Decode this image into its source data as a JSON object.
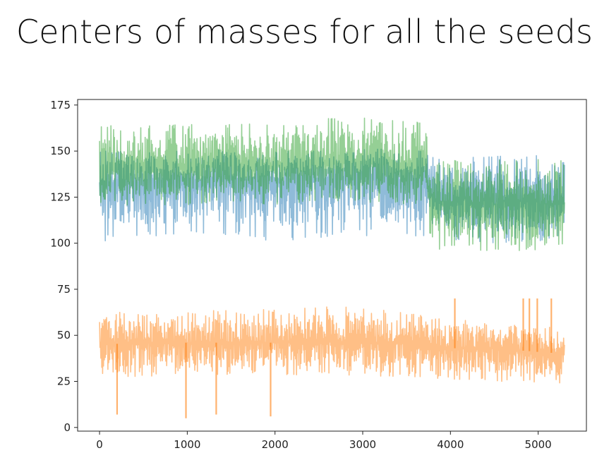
{
  "slide": {
    "title": "Centers of masses for all the seeds"
  },
  "chart_data": {
    "type": "line",
    "title": "",
    "xlabel": "",
    "ylabel": "",
    "xlim": [
      -250,
      5550
    ],
    "ylim": [
      -2,
      178
    ],
    "grid": false,
    "legend": "none",
    "x_ticks": [
      0,
      1000,
      2000,
      3000,
      4000,
      5000
    ],
    "y_ticks": [
      0,
      25,
      50,
      75,
      100,
      125,
      150,
      175
    ],
    "n_points": 5300,
    "series": [
      {
        "color": "#1f77b4",
        "alpha": 0.5,
        "x": [
          0,
          500,
          1000,
          1500,
          2000,
          2500,
          3000,
          3500,
          3720,
          3760,
          4000,
          4500,
          5000,
          5300
        ],
        "values": [
          132,
          133,
          134,
          134,
          133,
          134,
          135,
          134,
          134,
          126,
          125,
          124,
          123,
          124
        ],
        "spread": [
          [
            101,
            150
          ],
          [
            103,
            150
          ],
          [
            103,
            151
          ],
          [
            104,
            151
          ],
          [
            100,
            150
          ],
          [
            103,
            151
          ],
          [
            104,
            152
          ],
          [
            103,
            151
          ],
          [
            104,
            151
          ],
          [
            105,
            150
          ],
          [
            102,
            146
          ],
          [
            100,
            148
          ],
          [
            101,
            148
          ],
          [
            103,
            151
          ]
        ]
      },
      {
        "color": "#ff7f0e",
        "alpha": 0.5,
        "x": [
          0,
          500,
          1000,
          1500,
          2000,
          2500,
          3000,
          3500,
          3720,
          3760,
          4000,
          4500,
          5000,
          5300
        ],
        "values": [
          45,
          46,
          46,
          46,
          46,
          47,
          46,
          46,
          46,
          44,
          43,
          43,
          41,
          40
        ],
        "spread": [
          [
            26,
            62
          ],
          [
            28,
            63
          ],
          [
            27,
            63
          ],
          [
            28,
            64
          ],
          [
            28,
            64
          ],
          [
            29,
            66
          ],
          [
            27,
            65
          ],
          [
            27,
            63
          ],
          [
            27,
            62
          ],
          [
            27,
            60
          ],
          [
            26,
            59
          ],
          [
            25,
            57
          ],
          [
            24,
            55
          ],
          [
            24,
            54
          ]
        ],
        "spikes_low": [
          [
            200,
            7
          ],
          [
            985,
            5
          ],
          [
            1330,
            7
          ],
          [
            1950,
            6
          ]
        ],
        "spikes_high": [
          [
            4050,
            70
          ],
          [
            4830,
            70
          ],
          [
            4900,
            70
          ],
          [
            4990,
            70
          ],
          [
            5150,
            70
          ]
        ]
      },
      {
        "color": "#2ca02c",
        "alpha": 0.5,
        "x": [
          0,
          500,
          1000,
          1500,
          2000,
          2500,
          3000,
          3500,
          3720,
          3760,
          4000,
          4500,
          5000,
          5300
        ],
        "values": [
          141,
          141,
          142,
          142,
          142,
          144,
          144,
          143,
          143,
          123,
          122,
          121,
          121,
          122
        ],
        "spread": [
          [
            120,
            164
          ],
          [
            120,
            164
          ],
          [
            121,
            165
          ],
          [
            121,
            165
          ],
          [
            121,
            165
          ],
          [
            122,
            168
          ],
          [
            122,
            168
          ],
          [
            121,
            166
          ],
          [
            121,
            166
          ],
          [
            97,
            146
          ],
          [
            96,
            146
          ],
          [
            96,
            145
          ],
          [
            96,
            146
          ],
          [
            97,
            145
          ]
        ]
      }
    ]
  }
}
